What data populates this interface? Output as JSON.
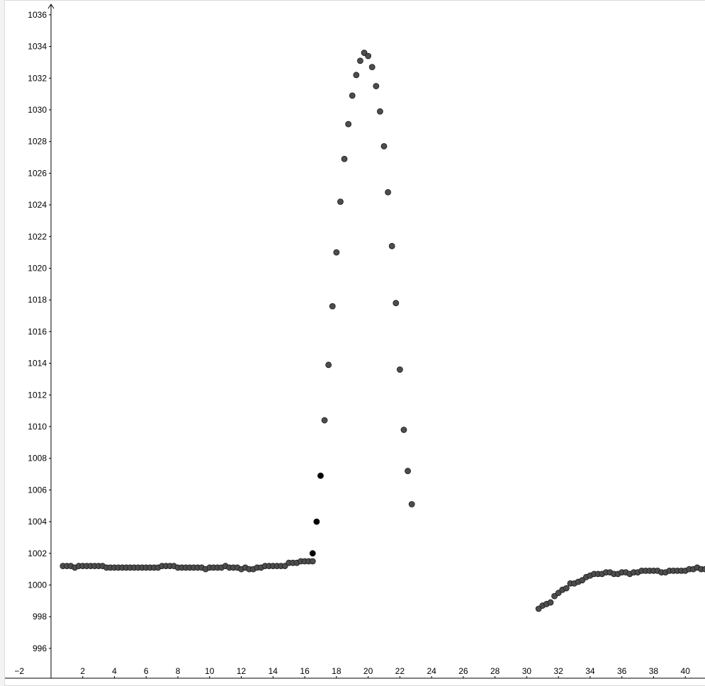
{
  "chart_data": {
    "type": "scatter",
    "title": "",
    "xlabel": "",
    "ylabel": "",
    "xlim": [
      -2,
      41
    ],
    "ylim": [
      995,
      1036.5
    ],
    "x_ticks": [
      -2,
      2,
      4,
      6,
      8,
      10,
      12,
      14,
      16,
      18,
      20,
      22,
      24,
      26,
      28,
      30,
      32,
      34,
      36,
      38,
      40
    ],
    "x_tick_labels": [
      "−2",
      "2",
      "4",
      "6",
      "8",
      "10",
      "12",
      "14",
      "16",
      "18",
      "20",
      "22",
      "24",
      "26",
      "28",
      "30",
      "32",
      "34",
      "36",
      "38",
      "40"
    ],
    "y_ticks": [
      996,
      998,
      1000,
      1002,
      1004,
      1006,
      1008,
      1010,
      1012,
      1014,
      1016,
      1018,
      1020,
      1022,
      1024,
      1026,
      1028,
      1030,
      1032,
      1034,
      1036
    ],
    "y_tick_labels": [
      "996",
      "998",
      "1000",
      "1002",
      "1004",
      "1006",
      "1008",
      "1010",
      "1012",
      "1014",
      "1016",
      "1018",
      "1020",
      "1022",
      "1024",
      "1026",
      "1028",
      "1030",
      "1032",
      "1034",
      "1036"
    ],
    "grid": false,
    "point_color": "#4d4d4d",
    "highlight_color": "#000000",
    "series": [
      {
        "points": [
          [
            0.75,
            1001.2
          ],
          [
            1.0,
            1001.2
          ],
          [
            1.25,
            1001.2
          ],
          [
            1.5,
            1001.1
          ],
          [
            1.75,
            1001.2
          ],
          [
            2.0,
            1001.2
          ],
          [
            2.25,
            1001.2
          ],
          [
            2.5,
            1001.2
          ],
          [
            2.75,
            1001.2
          ],
          [
            3.0,
            1001.2
          ],
          [
            3.25,
            1001.2
          ],
          [
            3.5,
            1001.1
          ],
          [
            3.75,
            1001.1
          ],
          [
            4.0,
            1001.1
          ],
          [
            4.25,
            1001.1
          ],
          [
            4.5,
            1001.1
          ],
          [
            4.75,
            1001.1
          ],
          [
            5.0,
            1001.1
          ],
          [
            5.25,
            1001.1
          ],
          [
            5.5,
            1001.1
          ],
          [
            5.75,
            1001.1
          ],
          [
            6.0,
            1001.1
          ],
          [
            6.25,
            1001.1
          ],
          [
            6.5,
            1001.1
          ],
          [
            6.75,
            1001.1
          ],
          [
            7.0,
            1001.2
          ],
          [
            7.25,
            1001.2
          ],
          [
            7.5,
            1001.2
          ],
          [
            7.75,
            1001.2
          ],
          [
            8.0,
            1001.1
          ],
          [
            8.25,
            1001.1
          ],
          [
            8.5,
            1001.1
          ],
          [
            8.75,
            1001.1
          ],
          [
            9.0,
            1001.1
          ],
          [
            9.25,
            1001.1
          ],
          [
            9.5,
            1001.1
          ],
          [
            9.75,
            1001.0
          ],
          [
            10.0,
            1001.1
          ],
          [
            10.25,
            1001.1
          ],
          [
            10.5,
            1001.1
          ],
          [
            10.75,
            1001.1
          ],
          [
            11.0,
            1001.2
          ],
          [
            11.25,
            1001.1
          ],
          [
            11.5,
            1001.1
          ],
          [
            11.75,
            1001.1
          ],
          [
            12.0,
            1001.0
          ],
          [
            12.25,
            1001.1
          ],
          [
            12.5,
            1001.0
          ],
          [
            12.75,
            1001.0
          ],
          [
            13.0,
            1001.1
          ],
          [
            13.25,
            1001.1
          ],
          [
            13.5,
            1001.2
          ],
          [
            13.75,
            1001.2
          ],
          [
            14.0,
            1001.2
          ],
          [
            14.25,
            1001.2
          ],
          [
            14.5,
            1001.2
          ],
          [
            14.75,
            1001.2
          ],
          [
            15.0,
            1001.4
          ],
          [
            15.25,
            1001.4
          ],
          [
            15.5,
            1001.4
          ],
          [
            15.75,
            1001.5
          ],
          [
            16.0,
            1001.5
          ],
          [
            16.25,
            1001.5
          ],
          [
            16.5,
            1001.5
          ],
          [
            17.25,
            1010.4
          ],
          [
            17.5,
            1013.9
          ],
          [
            17.75,
            1017.6
          ],
          [
            18.0,
            1021.0
          ],
          [
            18.25,
            1024.2
          ],
          [
            18.5,
            1026.9
          ],
          [
            18.75,
            1029.1
          ],
          [
            19.0,
            1030.9
          ],
          [
            19.25,
            1032.2
          ],
          [
            19.5,
            1033.1
          ],
          [
            19.75,
            1033.6
          ],
          [
            20.0,
            1033.4
          ],
          [
            20.25,
            1032.7
          ],
          [
            20.5,
            1031.5
          ],
          [
            20.75,
            1029.9
          ],
          [
            21.0,
            1027.7
          ],
          [
            21.25,
            1024.8
          ],
          [
            21.5,
            1021.4
          ],
          [
            21.75,
            1017.8
          ],
          [
            22.0,
            1013.6
          ],
          [
            22.25,
            1009.8
          ],
          [
            22.5,
            1007.2
          ],
          [
            22.75,
            1005.1
          ],
          [
            30.75,
            998.5
          ],
          [
            31.0,
            998.7
          ],
          [
            31.25,
            998.8
          ],
          [
            31.5,
            998.9
          ],
          [
            31.75,
            999.3
          ],
          [
            32.0,
            999.5
          ],
          [
            32.25,
            999.7
          ],
          [
            32.5,
            999.8
          ],
          [
            32.75,
            1000.1
          ],
          [
            33.0,
            1000.1
          ],
          [
            33.25,
            1000.2
          ],
          [
            33.5,
            1000.3
          ],
          [
            33.75,
            1000.5
          ],
          [
            34.0,
            1000.6
          ],
          [
            34.25,
            1000.7
          ],
          [
            34.5,
            1000.7
          ],
          [
            34.75,
            1000.7
          ],
          [
            35.0,
            1000.8
          ],
          [
            35.25,
            1000.8
          ],
          [
            35.5,
            1000.7
          ],
          [
            35.75,
            1000.7
          ],
          [
            36.0,
            1000.8
          ],
          [
            36.25,
            1000.8
          ],
          [
            36.5,
            1000.7
          ],
          [
            36.75,
            1000.8
          ],
          [
            37.0,
            1000.8
          ],
          [
            37.25,
            1000.9
          ],
          [
            37.5,
            1000.9
          ],
          [
            37.75,
            1000.9
          ],
          [
            38.0,
            1000.9
          ],
          [
            38.25,
            1000.9
          ],
          [
            38.5,
            1000.8
          ],
          [
            38.75,
            1000.8
          ],
          [
            39.0,
            1000.9
          ],
          [
            39.25,
            1000.9
          ],
          [
            39.5,
            1000.9
          ],
          [
            39.75,
            1000.9
          ],
          [
            40.0,
            1000.9
          ],
          [
            40.25,
            1001.0
          ],
          [
            40.5,
            1001.0
          ],
          [
            40.75,
            1001.1
          ],
          [
            41.0,
            1001.0
          ],
          [
            41.25,
            1001.0
          ]
        ],
        "highlight": [
          [
            16.5,
            1002.0
          ],
          [
            16.75,
            1004.0
          ],
          [
            17.0,
            1006.9
          ]
        ]
      }
    ]
  }
}
